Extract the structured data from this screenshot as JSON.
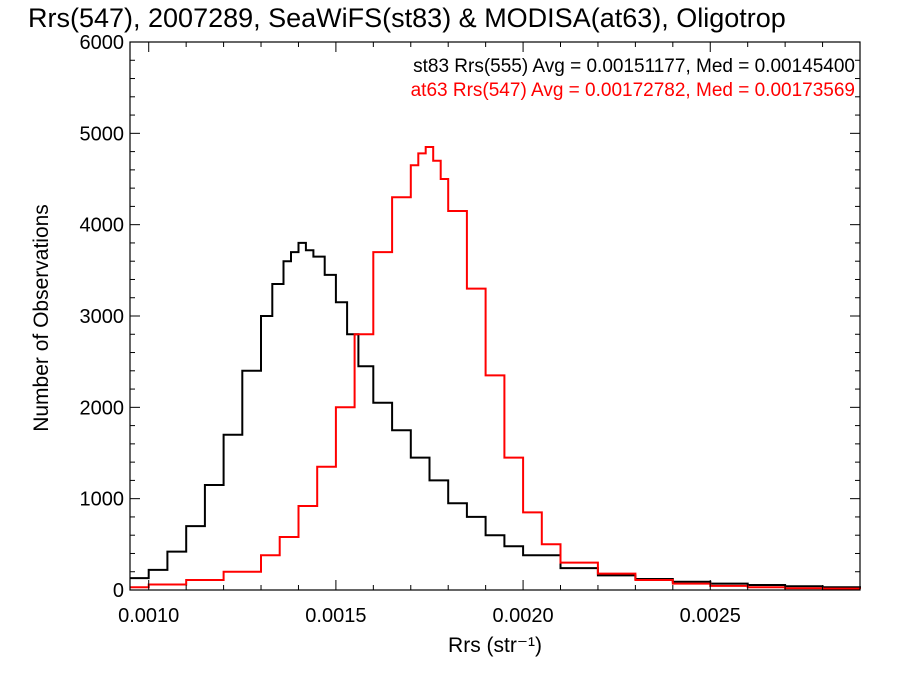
{
  "chart_data": {
    "type": "line",
    "step": true,
    "title": "Rrs(547), 2007289, SeaWiFS(st83) & MODISA(at63), Oligotrop",
    "xlabel": "Rrs (str⁻¹)",
    "ylabel": "Number of Observations",
    "xlim": [
      0.00095,
      0.0029
    ],
    "ylim": [
      0,
      6000
    ],
    "x_ticks": [
      0.001,
      0.0015,
      0.002,
      0.0025
    ],
    "x_tick_labels": [
      "0.0010",
      "0.0015",
      "0.0020",
      "0.0025"
    ],
    "y_ticks": [
      0,
      1000,
      2000,
      3000,
      4000,
      5000,
      6000
    ],
    "y_tick_labels": [
      "0",
      "1000",
      "2000",
      "3000",
      "4000",
      "5000",
      "6000"
    ],
    "grid": false,
    "legend_position": "top-right",
    "colors": {
      "black_series": "#000000",
      "red_series": "#ff0000"
    },
    "annotations": [
      {
        "text": "st83 Rrs(555) Avg = 0.00151177, Med = 0.00145400",
        "color": "#000000"
      },
      {
        "text": "at63 Rrs(547) Avg = 0.00172782, Med = 0.00173569",
        "color": "#ff0000"
      }
    ],
    "series": [
      {
        "color": "#000000",
        "x": [
          0.00095,
          0.001,
          0.00105,
          0.0011,
          0.00115,
          0.0012,
          0.00125,
          0.0013,
          0.00133,
          0.00136,
          0.00138,
          0.0014,
          0.00142,
          0.00144,
          0.00147,
          0.0015,
          0.00153,
          0.00156,
          0.0016,
          0.00165,
          0.0017,
          0.00175,
          0.0018,
          0.00185,
          0.0019,
          0.00195,
          0.002,
          0.0021,
          0.0022,
          0.0023,
          0.0024,
          0.0025,
          0.0026,
          0.0027,
          0.0028,
          0.0029
        ],
        "y": [
          130,
          220,
          420,
          700,
          1150,
          1700,
          2400,
          3000,
          3350,
          3600,
          3700,
          3800,
          3720,
          3650,
          3450,
          3150,
          2800,
          2450,
          2050,
          1750,
          1450,
          1200,
          950,
          800,
          600,
          480,
          380,
          240,
          160,
          120,
          90,
          70,
          55,
          40,
          30,
          20
        ]
      },
      {
        "color": "#ff0000",
        "x": [
          0.00095,
          0.001,
          0.0011,
          0.0012,
          0.0013,
          0.00135,
          0.0014,
          0.00145,
          0.0015,
          0.00155,
          0.0016,
          0.00165,
          0.0017,
          0.00172,
          0.00174,
          0.00176,
          0.00178,
          0.0018,
          0.00185,
          0.0019,
          0.00195,
          0.002,
          0.00205,
          0.0021,
          0.0022,
          0.0023,
          0.0024,
          0.0025,
          0.0026,
          0.0027,
          0.0028,
          0.0029
        ],
        "y": [
          30,
          60,
          110,
          200,
          380,
          580,
          920,
          1350,
          2000,
          2800,
          3700,
          4300,
          4650,
          4780,
          4850,
          4700,
          4500,
          4150,
          3300,
          2350,
          1450,
          850,
          500,
          300,
          180,
          110,
          70,
          45,
          30,
          20,
          15,
          10
        ]
      }
    ]
  }
}
